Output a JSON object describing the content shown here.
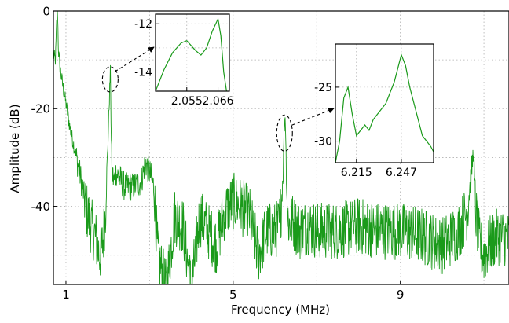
{
  "chart_data": [
    {
      "type": "line",
      "panel": "main",
      "xlabel": "Frequency (MHz)",
      "ylabel": "Amplitude (dB)",
      "xlim": [
        0.7,
        11.6
      ],
      "ylim": [
        -56,
        0
      ],
      "xticks": [
        1,
        5,
        9
      ],
      "yticks": [
        0,
        -20,
        -40
      ],
      "grid": true,
      "series_color": "#1a9a1a",
      "series": [
        {
          "x": [
            0.7,
            0.75,
            0.78,
            0.8,
            0.82,
            0.85,
            0.9,
            1.0,
            1.1,
            1.2,
            1.35,
            1.5,
            1.6,
            1.7,
            1.75,
            1.8,
            1.85,
            1.9,
            1.95,
            2.0,
            2.03,
            2.055,
            2.066,
            2.08,
            2.1,
            2.15,
            2.2,
            2.4,
            2.6,
            2.8,
            2.9,
            3.0,
            3.1,
            3.2,
            3.4,
            3.6,
            3.8,
            4.0,
            4.2,
            4.4,
            4.6,
            4.8,
            5.0,
            5.2,
            5.4,
            5.6,
            5.8,
            6.0,
            6.1,
            6.15,
            6.2,
            6.215,
            6.247,
            6.28,
            6.3,
            6.35,
            6.4,
            6.6,
            6.8,
            7.0,
            7.5,
            8.0,
            8.5,
            9.0,
            9.5,
            10.0,
            10.4,
            10.6,
            10.7,
            10.75,
            10.8,
            10.9,
            11.0,
            11.2,
            11.4,
            11.6
          ],
          "y": [
            -9,
            -10,
            -2,
            0,
            -8,
            -11,
            -14,
            -19,
            -24,
            -28,
            -34,
            -41,
            -44,
            -46,
            -48,
            -50,
            -49,
            -46,
            -40,
            -28,
            -20,
            -14,
            -12,
            -24,
            -33,
            -35,
            -33,
            -36,
            -36,
            -35,
            -31,
            -33,
            -36,
            -50,
            -57,
            -42,
            -44,
            -57,
            -42,
            -45,
            -48,
            -41,
            -39,
            -40,
            -42,
            -50,
            -45,
            -45,
            -44,
            -40,
            -32,
            -25,
            -21,
            -35,
            -42,
            -44,
            -43,
            -45,
            -44,
            -45,
            -45,
            -44,
            -45,
            -45,
            -46,
            -48,
            -45,
            -41,
            -33,
            -29,
            -41,
            -48,
            -50,
            -47,
            -46,
            -47
          ]
        }
      ]
    },
    {
      "type": "line",
      "panel": "inset-1",
      "xlim": [
        2.044,
        2.07
      ],
      "ylim": [
        -14.8,
        -11.6
      ],
      "xticks": [
        "2.055",
        "2.066"
      ],
      "yticks": [
        "-12",
        "-14"
      ],
      "grid": true,
      "series_color": "#1a9a1a",
      "series": [
        {
          "x": [
            2.044,
            2.047,
            2.05,
            2.053,
            2.055,
            2.058,
            2.06,
            2.062,
            2.064,
            2.066,
            2.067,
            2.068,
            2.069
          ],
          "y": [
            -14.8,
            -13.9,
            -13.2,
            -12.8,
            -12.7,
            -13.1,
            -13.3,
            -13.0,
            -12.3,
            -11.8,
            -12.5,
            -14.0,
            -14.8
          ]
        }
      ]
    },
    {
      "type": "line",
      "panel": "inset-2",
      "xlim": [
        6.2,
        6.27
      ],
      "ylim": [
        -32,
        -21
      ],
      "xticks": [
        "6.215",
        "6.247"
      ],
      "yticks": [
        "-25",
        "-30"
      ],
      "grid": true,
      "series_color": "#1a9a1a",
      "series": [
        {
          "x": [
            6.2,
            6.203,
            6.206,
            6.209,
            6.212,
            6.215,
            6.218,
            6.221,
            6.224,
            6.227,
            6.23,
            6.233,
            6.236,
            6.239,
            6.242,
            6.245,
            6.247,
            6.25,
            6.253,
            6.256,
            6.259,
            6.262,
            6.265,
            6.268,
            6.27
          ],
          "y": [
            -32,
            -30,
            -26,
            -25,
            -27.5,
            -29.5,
            -29,
            -28.5,
            -29,
            -28,
            -27.5,
            -27,
            -26.5,
            -25.5,
            -24.5,
            -23,
            -22,
            -23,
            -25,
            -26.5,
            -28,
            -29.5,
            -30,
            -30.5,
            -31
          ]
        }
      ]
    }
  ]
}
